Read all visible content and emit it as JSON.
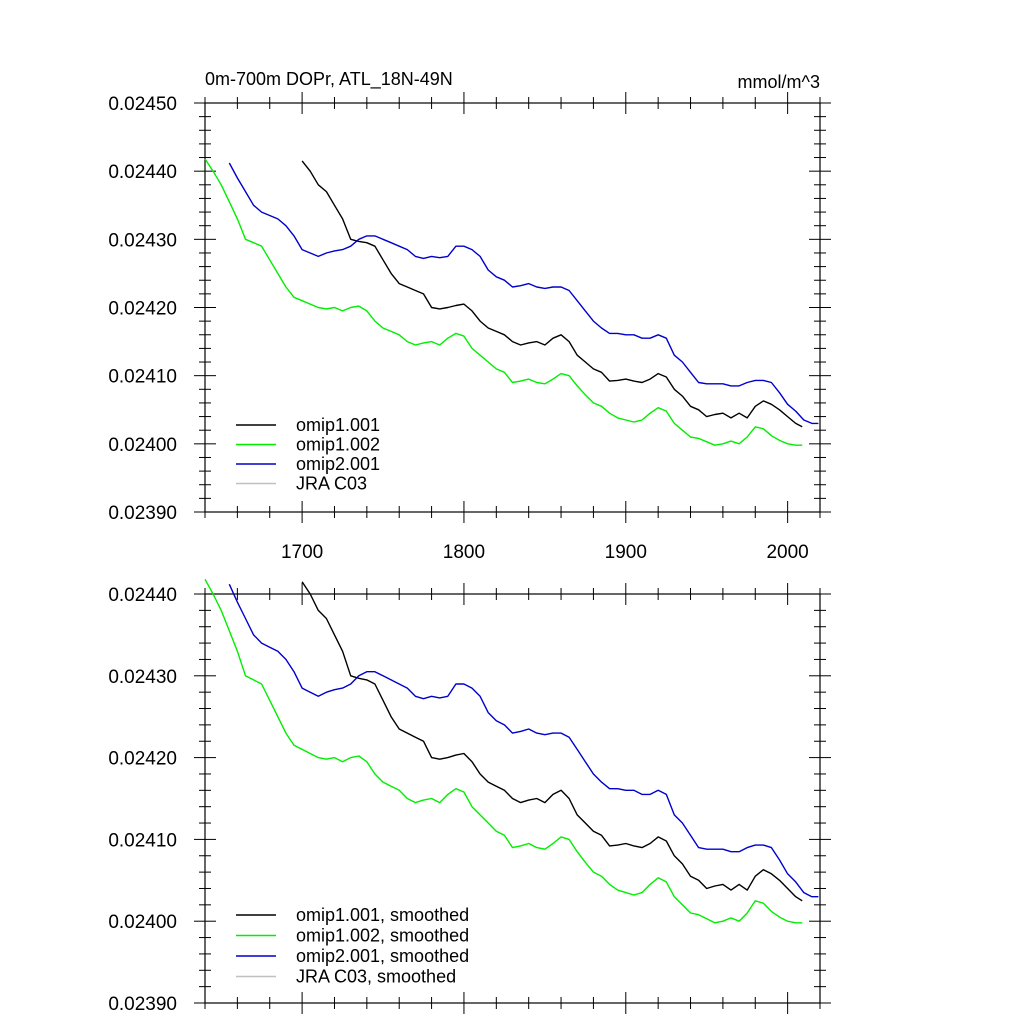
{
  "chart_data": [
    {
      "type": "line",
      "title": "0m-700m DOPr, ATL_18N-49N",
      "units": "mmol/m^3",
      "xlim": [
        1640,
        2020
      ],
      "ylim": [
        0.0239,
        0.0245
      ],
      "xticks": [
        "1700",
        "1800",
        "1900",
        "2000"
      ],
      "yticks": [
        "0.02390",
        "0.02400",
        "0.02410",
        "0.02420",
        "0.02430",
        "0.02440",
        "0.02450"
      ],
      "legend_position": "bottom-left",
      "series": [
        {
          "name": "omip1.001",
          "color": "#000000",
          "x": [
            1700,
            1705,
            1710,
            1715,
            1720,
            1725,
            1730,
            1735,
            1740,
            1745,
            1750,
            1755,
            1760,
            1765,
            1770,
            1775,
            1780,
            1785,
            1790,
            1795,
            1800,
            1805,
            1810,
            1815,
            1820,
            1825,
            1830,
            1835,
            1840,
            1845,
            1850,
            1855,
            1860,
            1865,
            1870,
            1875,
            1880,
            1885,
            1890,
            1895,
            1900,
            1905,
            1910,
            1915,
            1920,
            1925,
            1930,
            1935,
            1940,
            1945,
            1950,
            1955,
            1960,
            1965,
            1970,
            1975,
            1980,
            1985,
            1990,
            1995,
            2000,
            2005,
            2009
          ],
          "y": [
            0.024415,
            0.0244,
            0.02438,
            0.02437,
            0.02435,
            0.02433,
            0.0243,
            0.024297,
            0.024295,
            0.02429,
            0.02427,
            0.02425,
            0.024235,
            0.02423,
            0.024225,
            0.02422,
            0.0242,
            0.024198,
            0.0242,
            0.024203,
            0.024205,
            0.024195,
            0.02418,
            0.02417,
            0.024165,
            0.02416,
            0.02415,
            0.024145,
            0.024148,
            0.02415,
            0.024145,
            0.024155,
            0.02416,
            0.02415,
            0.02413,
            0.02412,
            0.02411,
            0.024105,
            0.024092,
            0.024093,
            0.024095,
            0.024092,
            0.02409,
            0.024095,
            0.024103,
            0.024098,
            0.02408,
            0.02407,
            0.024055,
            0.02405,
            0.02404,
            0.024043,
            0.024045,
            0.024038,
            0.024045,
            0.024038,
            0.024055,
            0.024063,
            0.024058,
            0.02405,
            0.02404,
            0.02403,
            0.024025
          ]
        },
        {
          "name": "omip1.002",
          "color": "#00ee00",
          "x": [
            1640,
            1645,
            1650,
            1655,
            1660,
            1665,
            1670,
            1675,
            1680,
            1685,
            1690,
            1695,
            1700,
            1705,
            1710,
            1715,
            1720,
            1725,
            1730,
            1735,
            1740,
            1745,
            1750,
            1755,
            1760,
            1765,
            1770,
            1775,
            1780,
            1785,
            1790,
            1795,
            1800,
            1805,
            1810,
            1815,
            1820,
            1825,
            1830,
            1835,
            1840,
            1845,
            1850,
            1855,
            1860,
            1865,
            1870,
            1875,
            1880,
            1885,
            1890,
            1895,
            1900,
            1905,
            1910,
            1915,
            1920,
            1925,
            1930,
            1935,
            1940,
            1945,
            1950,
            1955,
            1960,
            1965,
            1970,
            1975,
            1980,
            1985,
            1990,
            1995,
            2000,
            2005,
            2009
          ],
          "y": [
            0.024418,
            0.0244,
            0.02438,
            0.024355,
            0.02433,
            0.0243,
            0.024295,
            0.02429,
            0.02427,
            0.02425,
            0.02423,
            0.024215,
            0.02421,
            0.024205,
            0.0242,
            0.024198,
            0.0242,
            0.024195,
            0.0242,
            0.024202,
            0.024195,
            0.02418,
            0.02417,
            0.024165,
            0.02416,
            0.02415,
            0.024145,
            0.024148,
            0.02415,
            0.024145,
            0.024155,
            0.024162,
            0.024158,
            0.02414,
            0.02413,
            0.02412,
            0.02411,
            0.024105,
            0.02409,
            0.024092,
            0.024095,
            0.02409,
            0.024088,
            0.024095,
            0.024103,
            0.0241,
            0.024085,
            0.024072,
            0.02406,
            0.024055,
            0.024045,
            0.024038,
            0.024035,
            0.024032,
            0.024035,
            0.024045,
            0.024053,
            0.024048,
            0.02403,
            0.02402,
            0.02401,
            0.024008,
            0.024003,
            0.023998,
            0.024,
            0.024004,
            0.024,
            0.02401,
            0.024025,
            0.024022,
            0.024012,
            0.024005,
            0.024,
            0.023998,
            0.023998
          ]
        },
        {
          "name": "omip2.001",
          "color": "#0000cc",
          "x": [
            1655,
            1660,
            1665,
            1670,
            1675,
            1680,
            1685,
            1690,
            1695,
            1700,
            1705,
            1710,
            1715,
            1720,
            1725,
            1730,
            1735,
            1740,
            1745,
            1750,
            1755,
            1760,
            1765,
            1770,
            1775,
            1780,
            1785,
            1790,
            1795,
            1800,
            1805,
            1810,
            1815,
            1820,
            1825,
            1830,
            1835,
            1840,
            1845,
            1850,
            1855,
            1860,
            1865,
            1870,
            1875,
            1880,
            1885,
            1890,
            1895,
            1900,
            1905,
            1910,
            1915,
            1920,
            1925,
            1930,
            1935,
            1940,
            1945,
            1950,
            1955,
            1960,
            1965,
            1970,
            1975,
            1980,
            1985,
            1990,
            1995,
            2000,
            2005,
            2010,
            2015,
            2019
          ],
          "y": [
            0.024412,
            0.02439,
            0.02437,
            0.02435,
            0.02434,
            0.024335,
            0.02433,
            0.02432,
            0.024305,
            0.024285,
            0.02428,
            0.024275,
            0.02428,
            0.024283,
            0.024285,
            0.02429,
            0.0243,
            0.024305,
            0.024305,
            0.0243,
            0.024295,
            0.02429,
            0.024285,
            0.024275,
            0.024272,
            0.024275,
            0.024273,
            0.024275,
            0.02429,
            0.02429,
            0.024285,
            0.024275,
            0.024255,
            0.024245,
            0.02424,
            0.02423,
            0.024232,
            0.024235,
            0.02423,
            0.024228,
            0.02423,
            0.02423,
            0.024225,
            0.02421,
            0.024195,
            0.02418,
            0.02417,
            0.024162,
            0.024162,
            0.02416,
            0.02416,
            0.024155,
            0.024155,
            0.02416,
            0.024155,
            0.02413,
            0.02412,
            0.024105,
            0.02409,
            0.024088,
            0.024088,
            0.024088,
            0.024085,
            0.024085,
            0.02409,
            0.024093,
            0.024093,
            0.02409,
            0.024075,
            0.024058,
            0.024048,
            0.024035,
            0.02403,
            0.02403
          ]
        },
        {
          "name": "JRA C03",
          "color": "#c0c0c0",
          "x": [],
          "y": []
        }
      ]
    },
    {
      "type": "line",
      "title": "",
      "units": "",
      "xlim": [
        1640,
        2020
      ],
      "ylim": [
        0.0239,
        0.0244
      ],
      "xticks": [],
      "yticks": [
        "0.02390",
        "0.02400",
        "0.02410",
        "0.02420",
        "0.02430",
        "0.02440"
      ],
      "legend_position": "bottom-left",
      "series": [
        {
          "name": "omip1.001, smoothed",
          "color": "#000000",
          "x": [
            1700,
            1705,
            1710,
            1715,
            1720,
            1725,
            1730,
            1735,
            1740,
            1745,
            1750,
            1755,
            1760,
            1765,
            1770,
            1775,
            1780,
            1785,
            1790,
            1795,
            1800,
            1805,
            1810,
            1815,
            1820,
            1825,
            1830,
            1835,
            1840,
            1845,
            1850,
            1855,
            1860,
            1865,
            1870,
            1875,
            1880,
            1885,
            1890,
            1895,
            1900,
            1905,
            1910,
            1915,
            1920,
            1925,
            1930,
            1935,
            1940,
            1945,
            1950,
            1955,
            1960,
            1965,
            1970,
            1975,
            1980,
            1985,
            1990,
            1995,
            2000,
            2005,
            2009
          ],
          "y": [
            0.024415,
            0.0244,
            0.02438,
            0.02437,
            0.02435,
            0.02433,
            0.0243,
            0.024297,
            0.024295,
            0.02429,
            0.02427,
            0.02425,
            0.024235,
            0.02423,
            0.024225,
            0.02422,
            0.0242,
            0.024198,
            0.0242,
            0.024203,
            0.024205,
            0.024195,
            0.02418,
            0.02417,
            0.024165,
            0.02416,
            0.02415,
            0.024145,
            0.024148,
            0.02415,
            0.024145,
            0.024155,
            0.02416,
            0.02415,
            0.02413,
            0.02412,
            0.02411,
            0.024105,
            0.024092,
            0.024093,
            0.024095,
            0.024092,
            0.02409,
            0.024095,
            0.024103,
            0.024098,
            0.02408,
            0.02407,
            0.024055,
            0.02405,
            0.02404,
            0.024043,
            0.024045,
            0.024038,
            0.024045,
            0.024038,
            0.024055,
            0.024063,
            0.024058,
            0.02405,
            0.02404,
            0.02403,
            0.024025
          ]
        },
        {
          "name": "omip1.002, smoothed",
          "color": "#00ee00",
          "x": [
            1640,
            1645,
            1650,
            1655,
            1660,
            1665,
            1670,
            1675,
            1680,
            1685,
            1690,
            1695,
            1700,
            1705,
            1710,
            1715,
            1720,
            1725,
            1730,
            1735,
            1740,
            1745,
            1750,
            1755,
            1760,
            1765,
            1770,
            1775,
            1780,
            1785,
            1790,
            1795,
            1800,
            1805,
            1810,
            1815,
            1820,
            1825,
            1830,
            1835,
            1840,
            1845,
            1850,
            1855,
            1860,
            1865,
            1870,
            1875,
            1880,
            1885,
            1890,
            1895,
            1900,
            1905,
            1910,
            1915,
            1920,
            1925,
            1930,
            1935,
            1940,
            1945,
            1950,
            1955,
            1960,
            1965,
            1970,
            1975,
            1980,
            1985,
            1990,
            1995,
            2000,
            2005,
            2009
          ],
          "y": [
            0.024418,
            0.0244,
            0.02438,
            0.024355,
            0.02433,
            0.0243,
            0.024295,
            0.02429,
            0.02427,
            0.02425,
            0.02423,
            0.024215,
            0.02421,
            0.024205,
            0.0242,
            0.024198,
            0.0242,
            0.024195,
            0.0242,
            0.024202,
            0.024195,
            0.02418,
            0.02417,
            0.024165,
            0.02416,
            0.02415,
            0.024145,
            0.024148,
            0.02415,
            0.024145,
            0.024155,
            0.024162,
            0.024158,
            0.02414,
            0.02413,
            0.02412,
            0.02411,
            0.024105,
            0.02409,
            0.024092,
            0.024095,
            0.02409,
            0.024088,
            0.024095,
            0.024103,
            0.0241,
            0.024085,
            0.024072,
            0.02406,
            0.024055,
            0.024045,
            0.024038,
            0.024035,
            0.024032,
            0.024035,
            0.024045,
            0.024053,
            0.024048,
            0.02403,
            0.02402,
            0.02401,
            0.024008,
            0.024003,
            0.023998,
            0.024,
            0.024004,
            0.024,
            0.02401,
            0.024025,
            0.024022,
            0.024012,
            0.024005,
            0.024,
            0.023998,
            0.023998
          ]
        },
        {
          "name": "omip2.001, smoothed",
          "color": "#0000cc",
          "x": [
            1655,
            1660,
            1665,
            1670,
            1675,
            1680,
            1685,
            1690,
            1695,
            1700,
            1705,
            1710,
            1715,
            1720,
            1725,
            1730,
            1735,
            1740,
            1745,
            1750,
            1755,
            1760,
            1765,
            1770,
            1775,
            1780,
            1785,
            1790,
            1795,
            1800,
            1805,
            1810,
            1815,
            1820,
            1825,
            1830,
            1835,
            1840,
            1845,
            1850,
            1855,
            1860,
            1865,
            1870,
            1875,
            1880,
            1885,
            1890,
            1895,
            1900,
            1905,
            1910,
            1915,
            1920,
            1925,
            1930,
            1935,
            1940,
            1945,
            1950,
            1955,
            1960,
            1965,
            1970,
            1975,
            1980,
            1985,
            1990,
            1995,
            2000,
            2005,
            2010,
            2015,
            2019
          ],
          "y": [
            0.024412,
            0.02439,
            0.02437,
            0.02435,
            0.02434,
            0.024335,
            0.02433,
            0.02432,
            0.024305,
            0.024285,
            0.02428,
            0.024275,
            0.02428,
            0.024283,
            0.024285,
            0.02429,
            0.0243,
            0.024305,
            0.024305,
            0.0243,
            0.024295,
            0.02429,
            0.024285,
            0.024275,
            0.024272,
            0.024275,
            0.024273,
            0.024275,
            0.02429,
            0.02429,
            0.024285,
            0.024275,
            0.024255,
            0.024245,
            0.02424,
            0.02423,
            0.024232,
            0.024235,
            0.02423,
            0.024228,
            0.02423,
            0.02423,
            0.024225,
            0.02421,
            0.024195,
            0.02418,
            0.02417,
            0.024162,
            0.024162,
            0.02416,
            0.02416,
            0.024155,
            0.024155,
            0.02416,
            0.024155,
            0.02413,
            0.02412,
            0.024105,
            0.02409,
            0.024088,
            0.024088,
            0.024088,
            0.024085,
            0.024085,
            0.02409,
            0.024093,
            0.024093,
            0.02409,
            0.024075,
            0.024058,
            0.024048,
            0.024035,
            0.02403,
            0.02403
          ]
        },
        {
          "name": "JRA C03, smoothed",
          "color": "#c0c0c0",
          "x": [],
          "y": []
        }
      ]
    }
  ]
}
